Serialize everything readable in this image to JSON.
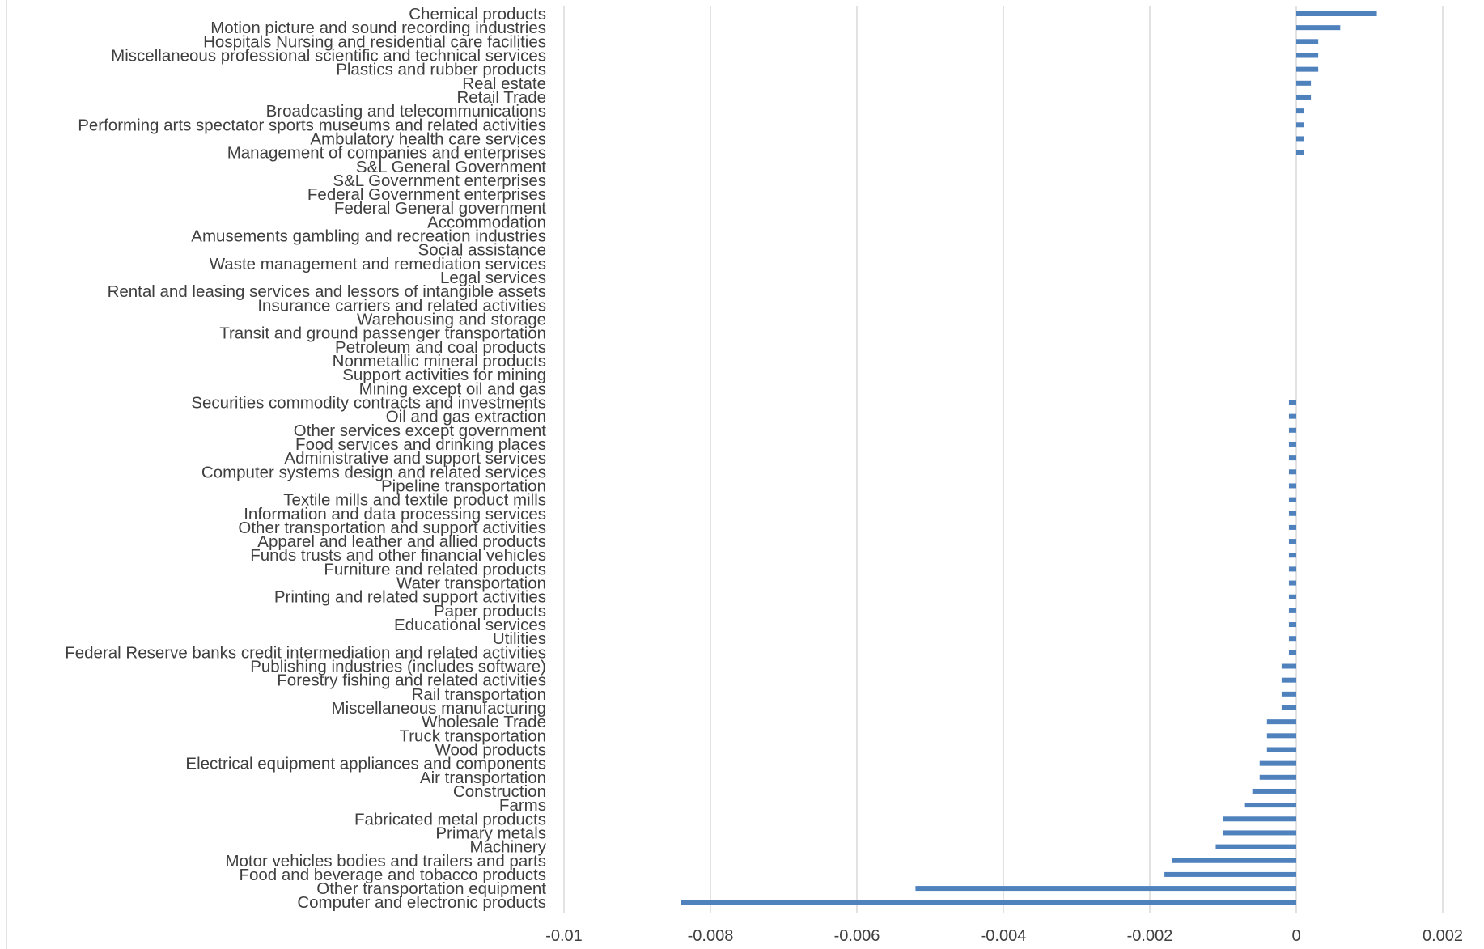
{
  "chart_data": {
    "type": "bar",
    "orientation": "horizontal",
    "title": "",
    "xlabel": "",
    "ylabel": "",
    "xlim": [
      -0.01,
      0.002
    ],
    "x_ticks": [
      -0.01,
      -0.008,
      -0.006,
      -0.004,
      -0.002,
      0,
      0.002
    ],
    "x_tick_labels": [
      "-0.01",
      "-0.008",
      "-0.006",
      "-0.004",
      "-0.002",
      "0",
      "0.002"
    ],
    "grid": "vertical",
    "legend": "none",
    "bar_color": "#4f81bd",
    "categories": [
      "Chemical products",
      "Motion picture and sound recording industries",
      "Hospitals Nursing and residential care facilities",
      "Miscellaneous professional scientific and technical services",
      "Plastics and rubber products",
      "Real estate",
      "Retail Trade",
      "Broadcasting and telecommunications",
      "Performing arts spectator sports museums and related activities",
      "Ambulatory health care services",
      "Management of companies and enterprises",
      "S&L General Government",
      "S&L Government enterprises",
      "Federal Government enterprises",
      "Federal General government",
      "Accommodation",
      "Amusements gambling and recreation industries",
      "Social assistance",
      "Waste management and remediation services",
      "Legal services",
      "Rental and leasing services and lessors of intangible assets",
      "Insurance carriers and related activities",
      "Warehousing and storage",
      "Transit and ground passenger transportation",
      "Petroleum and coal products",
      "Nonmetallic mineral products",
      "Support activities for mining",
      "Mining  except oil and gas",
      "Securities  commodity contracts  and investments",
      "Oil and gas extraction",
      "Other services except government",
      "Food services and drinking places",
      "Administrative and support services",
      "Computer systems design and related services",
      "Pipeline transportation",
      "Textile mills and textile product mills",
      "Information and data processing services",
      "Other transportation and support activities",
      "Apparel and leather and allied products",
      "Funds  trusts  and other financial vehicles",
      "Furniture and related products",
      "Water transportation",
      "Printing and related support activities",
      "Paper products",
      "Educational services",
      "Utilities",
      "Federal Reserve banks credit intermediation and related activities",
      "Publishing industries (includes software)",
      "Forestry  fishing  and related activities",
      "Rail transportation",
      "Miscellaneous manufacturing",
      "Wholesale Trade",
      "Truck transportation",
      "Wood products",
      "Electrical equipment appliances and components",
      "Air transportation",
      "Construction",
      "Farms",
      "Fabricated metal products",
      "Primary metals",
      "Machinery",
      "Motor vehicles bodies and trailers and parts",
      "Food and beverage and tobacco products",
      "Other transportation equipment",
      "Computer and electronic products"
    ],
    "values": [
      0.0011,
      0.0006,
      0.0003,
      0.0003,
      0.0003,
      0.0002,
      0.0002,
      0.0001,
      0.0001,
      0.0001,
      0.0001,
      0,
      0,
      0,
      0,
      0,
      0,
      0,
      0,
      0,
      0,
      0,
      0,
      0,
      0,
      0,
      0,
      0,
      -0.0001,
      -0.0001,
      -0.0001,
      -0.0001,
      -0.0001,
      -0.0001,
      -0.0001,
      -0.0001,
      -0.0001,
      -0.0001,
      -0.0001,
      -0.0001,
      -0.0001,
      -0.0001,
      -0.0001,
      -0.0001,
      -0.0001,
      -0.0001,
      -0.0001,
      -0.0002,
      -0.0002,
      -0.0002,
      -0.0002,
      -0.0004,
      -0.0004,
      -0.0004,
      -0.0005,
      -0.0005,
      -0.0006,
      -0.0007,
      -0.001,
      -0.001,
      -0.0011,
      -0.0017,
      -0.0018,
      -0.0052,
      -0.0084
    ]
  }
}
